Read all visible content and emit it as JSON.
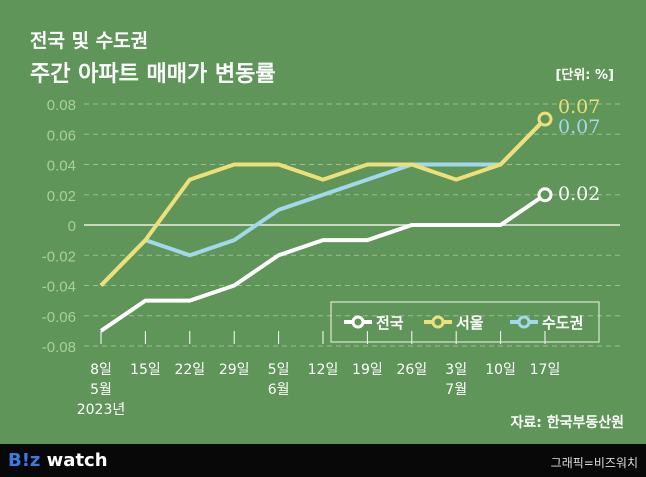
{
  "header": {
    "title_line1": "전국 및 수도권",
    "title_line2": "주간 아파트 매매가 변동률",
    "unit": "[단위: %]"
  },
  "source": "자료: 한국부동산원",
  "footer": {
    "logo_b": "B!z",
    "logo_rest": " watch",
    "credit": "그래픽=비즈워치"
  },
  "chart_data": {
    "type": "line",
    "categories": [
      "8일",
      "15일",
      "22일",
      "29일",
      "5일",
      "12일",
      "19일",
      "26일",
      "3일",
      "10일",
      "17일"
    ],
    "month_labels": [
      {
        "index": 0,
        "label": "5월"
      },
      {
        "index": 4,
        "label": "6월"
      },
      {
        "index": 8,
        "label": "7월"
      }
    ],
    "year_label": "2023년",
    "ylim": [
      -0.08,
      0.08
    ],
    "yticks": [
      "0.08",
      "0.06",
      "0.04",
      "0.02",
      "0",
      "-0.02",
      "-0.04",
      "-0.06",
      "-0.08"
    ],
    "grid": true,
    "legend_placement": "bottom-right",
    "series": [
      {
        "name": "전국",
        "color": "#ffffff",
        "values": [
          -0.07,
          -0.05,
          -0.05,
          -0.04,
          -0.02,
          -0.01,
          -0.01,
          0,
          0,
          0,
          0.02
        ],
        "end_label": "0.02"
      },
      {
        "name": "서울",
        "color": "#ede07a",
        "values": [
          -0.04,
          -0.01,
          0.03,
          0.04,
          0.04,
          0.03,
          0.04,
          0.04,
          0.03,
          0.04,
          0.07
        ],
        "end_label": "0.07"
      },
      {
        "name": "수도권",
        "color": "#a3d8ec",
        "values": [
          -0.04,
          -0.01,
          -0.02,
          -0.01,
          0.01,
          0.02,
          0.03,
          0.04,
          0.04,
          0.04,
          0.07
        ],
        "end_label": "0.07"
      }
    ]
  }
}
